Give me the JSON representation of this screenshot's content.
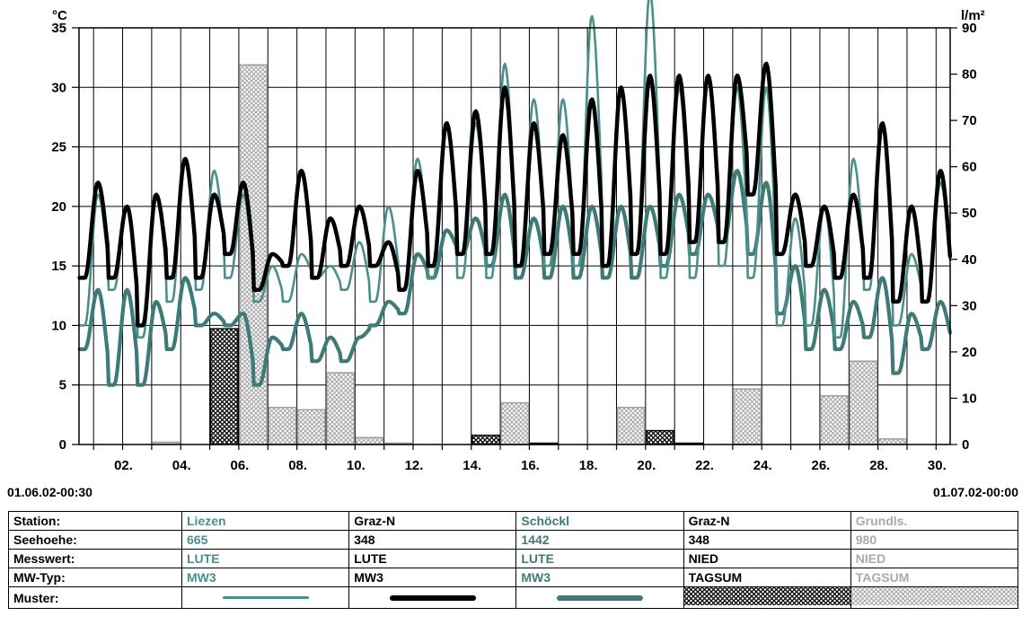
{
  "axes": {
    "left_unit": "°C",
    "right_unit": "l/m²",
    "left_ticks": [
      "35",
      "30",
      "25",
      "20",
      "15",
      "10",
      "5",
      "0"
    ],
    "right_ticks": [
      "90",
      "80",
      "70",
      "60",
      "50",
      "40",
      "30",
      "20",
      "10",
      "0"
    ],
    "x_ticks": [
      "02.",
      "04.",
      "06.",
      "08.",
      "10.",
      "12.",
      "14.",
      "16.",
      "18.",
      "20.",
      "22.",
      "24.",
      "26.",
      "28.",
      "30."
    ]
  },
  "period": {
    "start": "01.06.02-00:30",
    "end": "01.07.02-00:00"
  },
  "legend": {
    "row_labels": [
      "Station:",
      "Seehoehe:",
      "Messwert:",
      "MW-Typ:",
      "Muster:"
    ],
    "columns": [
      {
        "station": "Liezen",
        "height": "665",
        "value": "LUTE",
        "type": "MW3"
      },
      {
        "station": "Graz-N",
        "height": "348",
        "value": "LUTE",
        "type": "MW3"
      },
      {
        "station": "Schöckl",
        "height": "1442",
        "value": "LUTE",
        "type": "MW3"
      },
      {
        "station": "Graz-N",
        "height": "348",
        "value": "NIED",
        "type": "TAGSUM"
      },
      {
        "station": "Grundls.",
        "height": "980",
        "value": "NIED",
        "type": "TAGSUM"
      }
    ]
  },
  "colors": {
    "liezen": "#4a8f8b",
    "graz_temp": "#000000",
    "schoeckl": "#3f7b76",
    "graz_precip": "#000000",
    "grundlsee_precip": "#aaaaaa"
  },
  "chart_data": {
    "type": "line",
    "x_unit": "day of June 2002",
    "xlim": [
      0.5,
      31
    ],
    "y_left": {
      "label": "°C",
      "range": [
        0,
        35
      ]
    },
    "y_right": {
      "label": "l/m²",
      "range": [
        0,
        90
      ]
    },
    "grid": true,
    "series": [
      {
        "name": "Liezen",
        "axis": "left",
        "kind": "line",
        "daily_min": [
          10,
          13,
          9,
          12,
          13,
          14,
          12,
          12,
          14,
          13,
          12,
          13,
          14,
          14,
          14,
          15,
          15,
          15,
          15,
          16,
          14,
          14,
          15,
          14,
          10,
          10,
          9,
          13,
          10,
          12
        ],
        "daily_max": [
          21,
          20,
          21,
          24,
          23,
          21,
          15,
          16,
          15,
          17,
          20,
          24,
          27,
          27,
          32,
          29,
          29,
          36,
          30,
          38,
          30,
          31,
          30,
          30,
          19,
          20,
          24,
          27,
          16,
          22
        ]
      },
      {
        "name": "Graz-N",
        "axis": "left",
        "kind": "line",
        "daily_min": [
          14,
          14,
          10,
          14,
          14,
          16,
          13,
          15,
          14,
          15,
          15,
          13,
          15,
          16,
          16,
          15,
          16,
          16,
          15,
          16,
          16,
          17,
          17,
          21,
          16,
          15,
          14,
          14,
          12,
          12
        ],
        "daily_max": [
          22,
          20,
          21,
          24,
          21,
          22,
          16,
          23,
          19,
          20,
          17,
          23,
          27,
          28,
          30,
          27,
          26,
          29,
          30,
          31,
          31,
          31,
          31,
          32,
          21,
          20,
          21,
          27,
          20,
          23
        ]
      },
      {
        "name": "Schöckl",
        "axis": "left",
        "kind": "line",
        "daily_min": [
          8,
          5,
          5,
          8,
          10,
          10,
          5,
          8,
          7,
          7,
          10,
          11,
          14,
          16,
          15,
          14,
          14,
          14,
          14,
          14,
          15,
          16,
          17,
          16,
          11,
          8,
          8,
          9,
          6,
          8
        ],
        "daily_max": [
          13,
          13,
          12,
          14,
          11,
          11,
          9,
          11,
          9,
          9,
          12,
          16,
          18,
          19,
          21,
          19,
          20,
          20,
          20,
          20,
          21,
          21,
          23,
          22,
          15,
          13,
          12,
          14,
          11,
          12
        ]
      },
      {
        "name": "Graz-N",
        "axis": "right",
        "kind": "bar",
        "pattern": "crosshatch-dark",
        "days": [
          6,
          7,
          8,
          9,
          10,
          15,
          16,
          17,
          21,
          22,
          24,
          28
        ],
        "values": [
          25,
          8,
          1,
          0.3,
          0.5,
          2,
          4.5,
          0.2,
          3,
          0.2,
          1.5,
          7
        ]
      },
      {
        "name": "Grundls.",
        "axis": "right",
        "kind": "bar",
        "pattern": "crosshatch-light",
        "days": [
          4,
          7,
          8,
          9,
          10,
          11,
          12,
          16,
          20,
          24,
          27,
          28,
          29
        ],
        "values": [
          0.5,
          82,
          8,
          7.5,
          15.5,
          1.5,
          0.3,
          9,
          8,
          12,
          10.5,
          18,
          1.2
        ]
      }
    ]
  }
}
